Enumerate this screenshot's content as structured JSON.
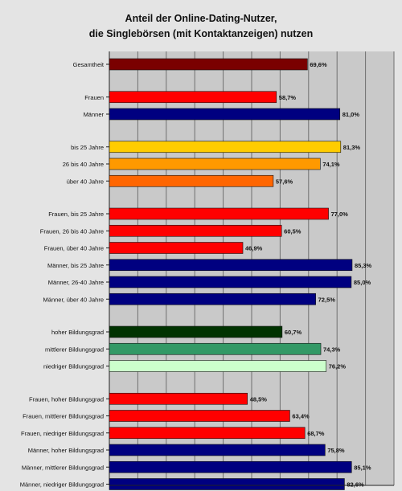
{
  "chart_data": {
    "type": "bar",
    "orientation": "horizontal",
    "title": "Anteil der Online-Dating-Nutzer,",
    "subtitle": "die Singlebörsen (mit Kontaktanzeigen) nutzen",
    "xlim": [
      0,
      100
    ],
    "grid": true,
    "bars": [
      {
        "label": "Gesamtheit",
        "value": 69.6,
        "display": "69,6%",
        "color": "#7a0000"
      },
      {
        "label": "Frauen",
        "value": 58.7,
        "display": "58,7%",
        "color": "#ff0000"
      },
      {
        "label": "Männer",
        "value": 81.0,
        "display": "81,0%",
        "color": "#000080"
      },
      {
        "label": "bis 25 Jahre",
        "value": 81.3,
        "display": "81,3%",
        "color": "#ffcc00"
      },
      {
        "label": "26 bis 40 Jahre",
        "value": 74.1,
        "display": "74,1%",
        "color": "#ff9900"
      },
      {
        "label": "über 40 Jahre",
        "value": 57.6,
        "display": "57,6%",
        "color": "#ff6600"
      },
      {
        "label": "Frauen, bis 25 Jahre",
        "value": 77.0,
        "display": "77,0%",
        "color": "#ff0000"
      },
      {
        "label": "Frauen, 26 bis 40 Jahre",
        "value": 60.5,
        "display": "60,5%",
        "color": "#ff0000"
      },
      {
        "label": "Frauen, über 40 Jahre",
        "value": 46.9,
        "display": "46,9%",
        "color": "#ff0000"
      },
      {
        "label": "Männer, bis 25 Jahre",
        "value": 85.3,
        "display": "85,3%",
        "color": "#000080"
      },
      {
        "label": "Männer, 26-40 Jahre",
        "value": 85.0,
        "display": "85,0%",
        "color": "#000080"
      },
      {
        "label": "Männer, über 40 Jahre",
        "value": 72.5,
        "display": "72,5%",
        "color": "#000080"
      },
      {
        "label": "hoher Bildungsgrad",
        "value": 60.7,
        "display": "60,7%",
        "color": "#003300"
      },
      {
        "label": "mittlerer Bildungsgrad",
        "value": 74.3,
        "display": "74,3%",
        "color": "#339966"
      },
      {
        "label": "niedriger Bildungsgrad",
        "value": 76.2,
        "display": "76,2%",
        "color": "#ccffcc"
      },
      {
        "label": "Frauen, hoher Bildungsgrad",
        "value": 48.5,
        "display": "48,5%",
        "color": "#ff0000"
      },
      {
        "label": "Frauen, mittlerer Bildungsgrad",
        "value": 63.4,
        "display": "63,4%",
        "color": "#ff0000"
      },
      {
        "label": "Frauen, niedriger Bildungsgrad",
        "value": 68.7,
        "display": "68,7%",
        "color": "#ff0000"
      },
      {
        "label": "Männer, hoher Bildungsgrad",
        "value": 75.8,
        "display": "75,8%",
        "color": "#000080"
      },
      {
        "label": "Männer, mittlerer Bildungsgrad",
        "value": 85.1,
        "display": "85,1%",
        "color": "#000080"
      },
      {
        "label": "Männer, niedriger Bildungsgrad",
        "value": 82.6,
        "display": "82,6%",
        "color": "#000080"
      }
    ]
  }
}
